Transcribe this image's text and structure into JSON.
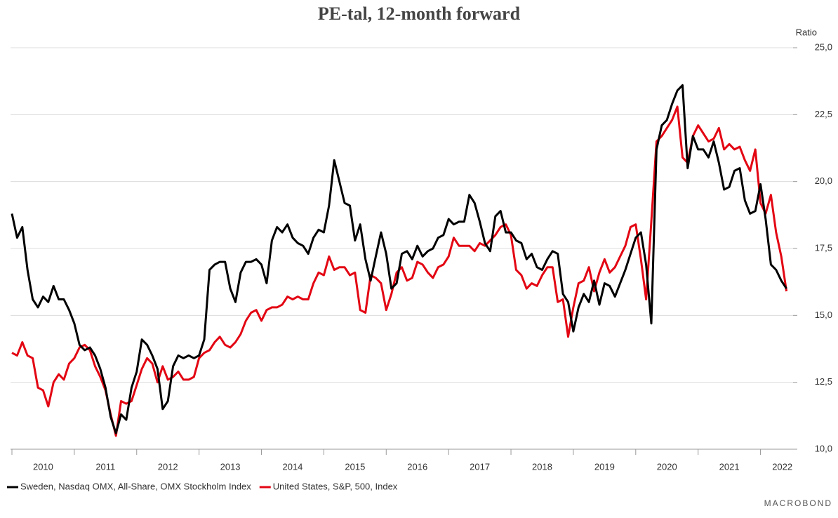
{
  "chart_data": {
    "type": "line",
    "title": "PE-tal, 12-month forward",
    "y_axis_label": "Ratio",
    "source": "MACROBOND",
    "x": [
      2010,
      2010.083,
      2010.167,
      2010.25,
      2010.333,
      2010.417,
      2010.5,
      2010.583,
      2010.667,
      2010.75,
      2010.833,
      2010.917,
      2011,
      2011.083,
      2011.167,
      2011.25,
      2011.333,
      2011.417,
      2011.5,
      2011.583,
      2011.667,
      2011.75,
      2011.833,
      2011.917,
      2012,
      2012.083,
      2012.167,
      2012.25,
      2012.333,
      2012.417,
      2012.5,
      2012.583,
      2012.667,
      2012.75,
      2012.833,
      2012.917,
      2013,
      2013.083,
      2013.167,
      2013.25,
      2013.333,
      2013.417,
      2013.5,
      2013.583,
      2013.667,
      2013.75,
      2013.833,
      2013.917,
      2014,
      2014.083,
      2014.167,
      2014.25,
      2014.333,
      2014.417,
      2014.5,
      2014.583,
      2014.667,
      2014.75,
      2014.833,
      2014.917,
      2015,
      2015.083,
      2015.167,
      2015.25,
      2015.333,
      2015.417,
      2015.5,
      2015.583,
      2015.667,
      2015.75,
      2015.833,
      2015.917,
      2016,
      2016.083,
      2016.167,
      2016.25,
      2016.333,
      2016.417,
      2016.5,
      2016.583,
      2016.667,
      2016.75,
      2016.833,
      2016.917,
      2017,
      2017.083,
      2017.167,
      2017.25,
      2017.333,
      2017.417,
      2017.5,
      2017.583,
      2017.667,
      2017.75,
      2017.833,
      2017.917,
      2018,
      2018.083,
      2018.167,
      2018.25,
      2018.333,
      2018.417,
      2018.5,
      2018.583,
      2018.667,
      2018.75,
      2018.833,
      2018.917,
      2019,
      2019.083,
      2019.167,
      2019.25,
      2019.333,
      2019.417,
      2019.5,
      2019.583,
      2019.667,
      2019.75,
      2019.833,
      2019.917,
      2020,
      2020.083,
      2020.167,
      2020.25,
      2020.333,
      2020.417,
      2020.5,
      2020.583,
      2020.667,
      2020.75,
      2020.833,
      2020.917,
      2021,
      2021.083,
      2021.167,
      2021.25,
      2021.333,
      2021.417,
      2021.5,
      2021.583,
      2021.667,
      2021.75,
      2021.833,
      2021.917,
      2022,
      2022.083,
      2022.167,
      2022.25,
      2022.333,
      2022.417
    ],
    "series": [
      {
        "name": "Sweden, Nasdaq OMX, All-Share, OMX Stockholm Index",
        "color": "#000000",
        "values": [
          18.8,
          17.9,
          18.3,
          16.7,
          15.6,
          15.3,
          15.7,
          15.5,
          16.1,
          15.6,
          15.6,
          15.2,
          14.7,
          13.9,
          13.7,
          13.8,
          13.5,
          13.0,
          12.3,
          11.2,
          10.6,
          11.3,
          11.1,
          12.3,
          12.9,
          14.1,
          13.9,
          13.5,
          13.0,
          11.5,
          11.8,
          13.1,
          13.5,
          13.4,
          13.5,
          13.4,
          13.5,
          14.1,
          16.7,
          16.9,
          17.0,
          17.0,
          16.0,
          15.5,
          16.6,
          17.0,
          17.0,
          17.1,
          16.9,
          16.2,
          17.8,
          18.3,
          18.1,
          18.4,
          17.9,
          17.7,
          17.6,
          17.3,
          17.9,
          18.2,
          18.1,
          19.1,
          20.8,
          20.0,
          19.2,
          19.1,
          17.8,
          18.4,
          17.1,
          16.3,
          17.2,
          18.1,
          17.3,
          16.0,
          16.2,
          17.3,
          17.4,
          17.1,
          17.6,
          17.2,
          17.4,
          17.5,
          17.9,
          18.0,
          18.6,
          18.4,
          18.5,
          18.5,
          19.5,
          19.2,
          18.5,
          17.7,
          17.4,
          18.7,
          18.9,
          18.1,
          18.1,
          17.8,
          17.7,
          17.1,
          17.3,
          16.8,
          16.7,
          17.1,
          17.4,
          17.3,
          15.8,
          15.5,
          14.4,
          15.3,
          15.8,
          15.5,
          16.3,
          15.4,
          16.2,
          16.1,
          15.7,
          16.2,
          16.7,
          17.3,
          17.9,
          18.1,
          16.9,
          14.7,
          21.2,
          22.1,
          22.3,
          22.9,
          23.4,
          23.6,
          20.5,
          21.7,
          21.2,
          21.2,
          20.9,
          21.5,
          20.7,
          19.7,
          19.8,
          20.4,
          20.5,
          19.3,
          18.8,
          18.9,
          19.9,
          18.6,
          16.9,
          16.7,
          16.3,
          16.0
        ]
      },
      {
        "name": "United States, S&P, 500, Index",
        "color": "#e30613",
        "values": [
          13.6,
          13.5,
          14.0,
          13.5,
          13.4,
          12.3,
          12.2,
          11.6,
          12.5,
          12.8,
          12.6,
          13.2,
          13.4,
          13.8,
          13.9,
          13.7,
          13.1,
          12.7,
          12.2,
          11.3,
          10.5,
          11.8,
          11.7,
          11.8,
          12.4,
          13.0,
          13.4,
          13.2,
          12.5,
          13.1,
          12.6,
          12.7,
          12.9,
          12.6,
          12.6,
          12.7,
          13.4,
          13.6,
          13.7,
          14.0,
          14.2,
          13.9,
          13.8,
          14.0,
          14.3,
          14.8,
          15.1,
          15.2,
          14.8,
          15.2,
          15.3,
          15.3,
          15.4,
          15.7,
          15.6,
          15.7,
          15.6,
          15.6,
          16.2,
          16.6,
          16.5,
          17.2,
          16.7,
          16.8,
          16.8,
          16.5,
          16.6,
          15.2,
          15.1,
          16.5,
          16.4,
          16.2,
          15.2,
          15.8,
          16.6,
          16.8,
          16.3,
          16.4,
          17.0,
          16.9,
          16.6,
          16.4,
          16.8,
          16.9,
          17.2,
          17.9,
          17.6,
          17.6,
          17.6,
          17.4,
          17.7,
          17.6,
          17.8,
          18.0,
          18.3,
          18.4,
          18.0,
          16.7,
          16.5,
          16.0,
          16.2,
          16.1,
          16.5,
          16.8,
          16.8,
          15.5,
          15.6,
          14.2,
          15.3,
          16.2,
          16.3,
          16.8,
          15.9,
          16.6,
          17.1,
          16.6,
          16.8,
          17.2,
          17.6,
          18.3,
          18.4,
          17.1,
          15.6,
          18.5,
          21.5,
          21.7,
          22.0,
          22.3,
          22.8,
          20.9,
          20.7,
          21.7,
          22.1,
          21.8,
          21.5,
          21.6,
          22.0,
          21.2,
          21.4,
          21.2,
          21.3,
          20.8,
          20.4,
          21.2,
          19.2,
          18.8,
          19.5,
          18.1,
          17.2,
          15.9
        ]
      }
    ],
    "xlim": [
      2010,
      2022.5
    ],
    "xticks": [
      2010,
      2011,
      2012,
      2013,
      2014,
      2015,
      2016,
      2017,
      2018,
      2019,
      2020,
      2021,
      2022
    ],
    "ylim": [
      10,
      25
    ],
    "yticks": [
      {
        "value": 10,
        "label": "10,0"
      },
      {
        "value": 12.5,
        "label": "12,5"
      },
      {
        "value": 15,
        "label": "15,0"
      },
      {
        "value": 17.5,
        "label": "17,5"
      },
      {
        "value": 20,
        "label": "20,0"
      },
      {
        "value": 22.5,
        "label": "22,5"
      },
      {
        "value": 25,
        "label": "25,0"
      }
    ],
    "grid": true,
    "legend": "bottom"
  }
}
